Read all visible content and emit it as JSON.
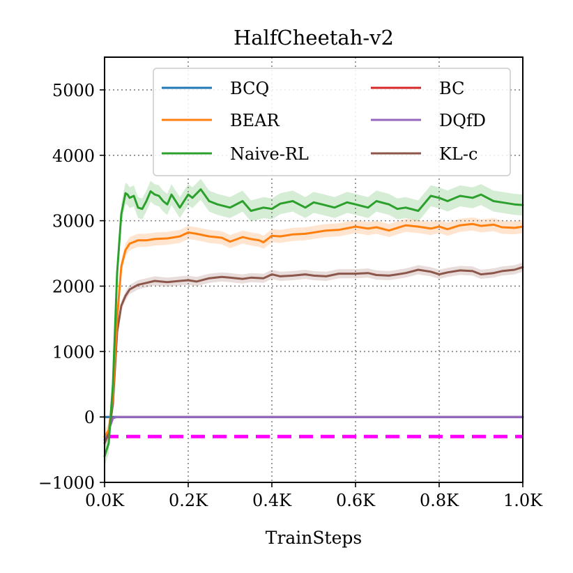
{
  "chart_data": {
    "type": "line",
    "title": "HalfCheetah-v2",
    "xlabel": "TrainSteps",
    "ylabel": "",
    "xlim": [
      0,
      1000
    ],
    "ylim": [
      -1000,
      5500
    ],
    "x_ticks": [
      0,
      200,
      400,
      600,
      800,
      1000
    ],
    "x_tick_labels": [
      "0.0K",
      "0.2K",
      "0.4K",
      "0.6K",
      "0.8K",
      "1.0K"
    ],
    "y_ticks": [
      -1000,
      0,
      1000,
      2000,
      3000,
      4000,
      5000
    ],
    "y_tick_labels": [
      "−1000",
      "0",
      "1000",
      "2000",
      "3000",
      "4000",
      "5000"
    ],
    "grid": true,
    "legend_position": "top-right",
    "legend_columns": 2,
    "series": [
      {
        "name": "BCQ",
        "color": "#1f77b4",
        "x": [
          0,
          1000
        ],
        "values": [
          0,
          0
        ]
      },
      {
        "name": "BEAR",
        "color": "#ff7f0e",
        "band": 100,
        "x": [
          0,
          10,
          20,
          30,
          40,
          50,
          60,
          80,
          100,
          120,
          150,
          180,
          200,
          220,
          250,
          280,
          300,
          330,
          350,
          370,
          380,
          400,
          420,
          450,
          480,
          500,
          530,
          560,
          600,
          630,
          650,
          680,
          700,
          720,
          750,
          780,
          800,
          820,
          850,
          880,
          900,
          930,
          950,
          980,
          1000
        ],
        "values": [
          -300,
          -200,
          300,
          1500,
          2300,
          2550,
          2650,
          2700,
          2700,
          2720,
          2730,
          2760,
          2820,
          2800,
          2760,
          2740,
          2680,
          2750,
          2720,
          2700,
          2670,
          2770,
          2760,
          2790,
          2800,
          2820,
          2850,
          2860,
          2910,
          2880,
          2900,
          2850,
          2890,
          2930,
          2910,
          2880,
          2910,
          2870,
          2930,
          2950,
          2920,
          2940,
          2900,
          2890,
          2910
        ]
      },
      {
        "name": "Naive-RL",
        "color": "#2ca02c",
        "band": 160,
        "x": [
          0,
          10,
          20,
          30,
          40,
          50,
          55,
          60,
          70,
          80,
          90,
          100,
          110,
          120,
          130,
          140,
          150,
          160,
          180,
          200,
          210,
          230,
          250,
          270,
          300,
          330,
          350,
          380,
          400,
          420,
          450,
          480,
          500,
          520,
          550,
          580,
          600,
          630,
          650,
          680,
          700,
          720,
          750,
          780,
          800,
          820,
          850,
          880,
          900,
          930,
          950,
          980,
          1000
        ],
        "values": [
          -600,
          -400,
          500,
          2200,
          3100,
          3420,
          3400,
          3350,
          3380,
          3200,
          3180,
          3300,
          3450,
          3400,
          3380,
          3300,
          3250,
          3400,
          3200,
          3400,
          3350,
          3480,
          3300,
          3250,
          3200,
          3300,
          3150,
          3200,
          3180,
          3260,
          3300,
          3200,
          3280,
          3250,
          3200,
          3280,
          3250,
          3200,
          3300,
          3250,
          3180,
          3200,
          3150,
          3380,
          3350,
          3300,
          3380,
          3350,
          3400,
          3300,
          3280,
          3250,
          3240
        ]
      },
      {
        "name": "BC",
        "color": "#d62728",
        "x": [
          0,
          1000
        ],
        "values": [
          0,
          0
        ]
      },
      {
        "name": "DQfD",
        "color": "#9467bd",
        "x": [
          0,
          10,
          20,
          30,
          1000
        ],
        "values": [
          -350,
          -200,
          -20,
          0,
          0
        ]
      },
      {
        "name": "KL-c",
        "color": "#8c564b",
        "band": 70,
        "x": [
          0,
          10,
          20,
          30,
          40,
          50,
          60,
          80,
          100,
          120,
          150,
          180,
          200,
          220,
          250,
          280,
          300,
          330,
          350,
          380,
          400,
          420,
          450,
          480,
          500,
          530,
          560,
          600,
          630,
          650,
          680,
          700,
          720,
          750,
          780,
          800,
          820,
          850,
          880,
          900,
          930,
          950,
          980,
          1000
        ],
        "values": [
          -400,
          -250,
          200,
          1300,
          1700,
          1850,
          1950,
          2020,
          2050,
          2080,
          2060,
          2080,
          2090,
          2070,
          2120,
          2140,
          2130,
          2110,
          2130,
          2120,
          2180,
          2150,
          2160,
          2180,
          2160,
          2150,
          2190,
          2190,
          2200,
          2170,
          2160,
          2180,
          2200,
          2250,
          2220,
          2180,
          2210,
          2240,
          2230,
          2180,
          2200,
          2230,
          2250,
          2290
        ]
      }
    ],
    "reference_line": {
      "y": -300,
      "color": "#ff00ff",
      "style": "dashed"
    }
  }
}
